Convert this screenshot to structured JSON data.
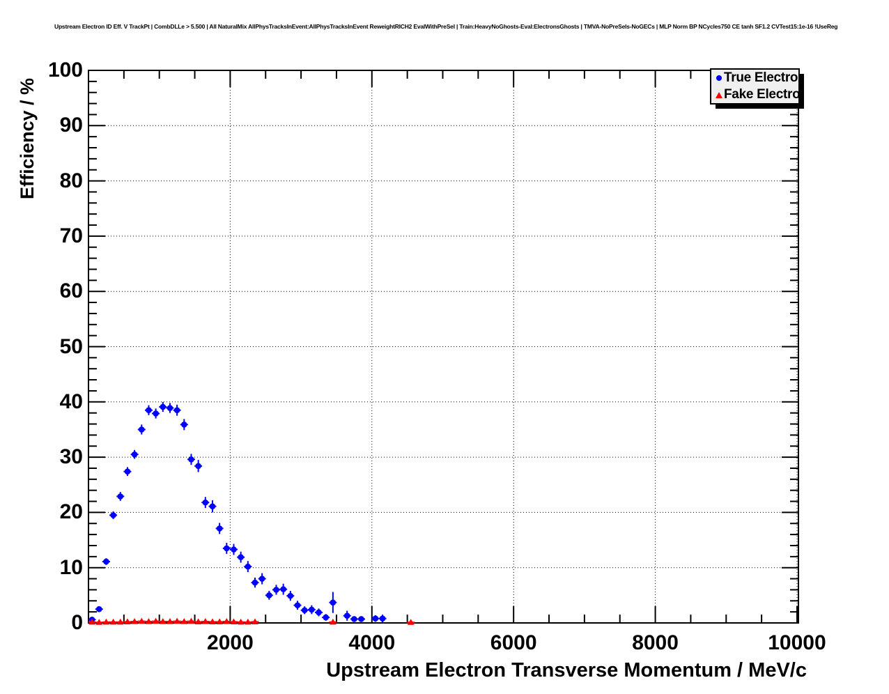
{
  "header": {
    "title": "Upstream Electron ID Eff. V TrackPt | CombDLLe > 5.500 | All NaturalMix AllPhysTracksInEvent:AllPhysTracksInEvent ReweightRICH2 EvalWithPreSel | Train:HeavyNoGhosts-Eval:ElectronsGhosts | TMVA-NoPreSels-NoGECs | MLP Norm BP NCycles750 CE tanh SF1.2 CVTest15:1e-16 !UseReg"
  },
  "chart_data": {
    "type": "scatter",
    "title": "Upstream Electron ID Eff. V TrackPt | CombDLLe > 5.500 | All NaturalMix AllPhysTracksInEvent:AllPhysTracksInEvent ReweightRICH2 EvalWithPreSel | Train:HeavyNoGhosts-Eval:ElectronsGhosts | TMVA-NoPreSels-NoGECs | MLP Norm BP NCycles750 CE tanh SF1.2 CVTest15:1e-16 !UseReg",
    "xlabel": "Upstream Electron Transverse Momentum / MeV/c",
    "ylabel": "Efficiency / %",
    "xlim": [
      0,
      10020
    ],
    "ylim": [
      0,
      100
    ],
    "x_major_ticks": [
      2000,
      4000,
      6000,
      8000,
      10000
    ],
    "x_tick_labels": [
      "2000",
      "4000",
      "6000",
      "8000",
      "10000"
    ],
    "x_minor_step": 500,
    "y_major_ticks": [
      0,
      10,
      20,
      30,
      40,
      50,
      60,
      70,
      80,
      90,
      100
    ],
    "y_tick_labels": [
      "0",
      "10",
      "20",
      "30",
      "40",
      "50",
      "60",
      "70",
      "80",
      "90",
      "100"
    ],
    "y_minor_step": 2,
    "grid": "dotted-on-major-ticks",
    "legend_position": "top-right",
    "series": [
      {
        "name": "True Electron",
        "marker": "circle",
        "color": "#0000ff",
        "points": [
          [
            50,
            0.6,
            0.3
          ],
          [
            150,
            2.5,
            0.4
          ],
          [
            250,
            11.1,
            0.6
          ],
          [
            350,
            19.5,
            0.7
          ],
          [
            450,
            22.9,
            0.8
          ],
          [
            550,
            27.4,
            0.8
          ],
          [
            650,
            30.5,
            0.8
          ],
          [
            750,
            35.0,
            0.9
          ],
          [
            850,
            38.5,
            0.9
          ],
          [
            950,
            37.9,
            0.9
          ],
          [
            1050,
            39.1,
            0.9
          ],
          [
            1150,
            38.9,
            0.9
          ],
          [
            1250,
            38.5,
            1.0
          ],
          [
            1350,
            35.9,
            1.0
          ],
          [
            1450,
            29.6,
            1.0
          ],
          [
            1550,
            28.4,
            1.1
          ],
          [
            1650,
            21.8,
            1.0
          ],
          [
            1750,
            21.1,
            1.1
          ],
          [
            1850,
            17.1,
            1.0
          ],
          [
            1950,
            13.5,
            1.0
          ],
          [
            2050,
            13.3,
            1.0
          ],
          [
            2150,
            11.9,
            1.0
          ],
          [
            2250,
            10.2,
            1.0
          ],
          [
            2350,
            7.3,
            0.9
          ],
          [
            2450,
            8.0,
            1.0
          ],
          [
            2550,
            5.0,
            0.8
          ],
          [
            2650,
            6.0,
            0.9
          ],
          [
            2750,
            6.1,
            1.0
          ],
          [
            2850,
            4.9,
            0.9
          ],
          [
            2950,
            3.2,
            0.8
          ],
          [
            3050,
            2.3,
            0.7
          ],
          [
            3150,
            2.4,
            0.8
          ],
          [
            3250,
            1.9,
            0.7
          ],
          [
            3350,
            1.0,
            0.6
          ],
          [
            3450,
            3.7,
            1.9
          ],
          [
            3650,
            1.3,
            0.9
          ],
          [
            3750,
            0.7,
            0.5
          ],
          [
            3850,
            0.7,
            0.5
          ],
          [
            4050,
            0.8,
            0.6
          ],
          [
            4150,
            0.8,
            0.7
          ]
        ]
      },
      {
        "name": "Fake Electron",
        "marker": "triangle",
        "color": "#ff0000",
        "points": [
          [
            50,
            0.15,
            0.1
          ],
          [
            150,
            0.1,
            0.1
          ],
          [
            250,
            0.15,
            0.1
          ],
          [
            350,
            0.15,
            0.1
          ],
          [
            450,
            0.15,
            0.1
          ],
          [
            550,
            0.2,
            0.1
          ],
          [
            650,
            0.25,
            0.1
          ],
          [
            750,
            0.3,
            0.1
          ],
          [
            850,
            0.25,
            0.1
          ],
          [
            950,
            0.3,
            0.1
          ],
          [
            1050,
            0.25,
            0.1
          ],
          [
            1150,
            0.25,
            0.1
          ],
          [
            1250,
            0.3,
            0.1
          ],
          [
            1350,
            0.25,
            0.1
          ],
          [
            1450,
            0.3,
            0.1
          ],
          [
            1550,
            0.2,
            0.1
          ],
          [
            1650,
            0.25,
            0.1
          ],
          [
            1750,
            0.2,
            0.1
          ],
          [
            1850,
            0.2,
            0.1
          ],
          [
            1950,
            0.25,
            0.1
          ],
          [
            2050,
            0.2,
            0.1
          ],
          [
            2150,
            0.15,
            0.1
          ],
          [
            2250,
            0.15,
            0.1
          ],
          [
            2350,
            0.2,
            0.1
          ],
          [
            3450,
            0.15,
            0.1
          ],
          [
            4550,
            0.1,
            0.1
          ]
        ]
      }
    ]
  }
}
